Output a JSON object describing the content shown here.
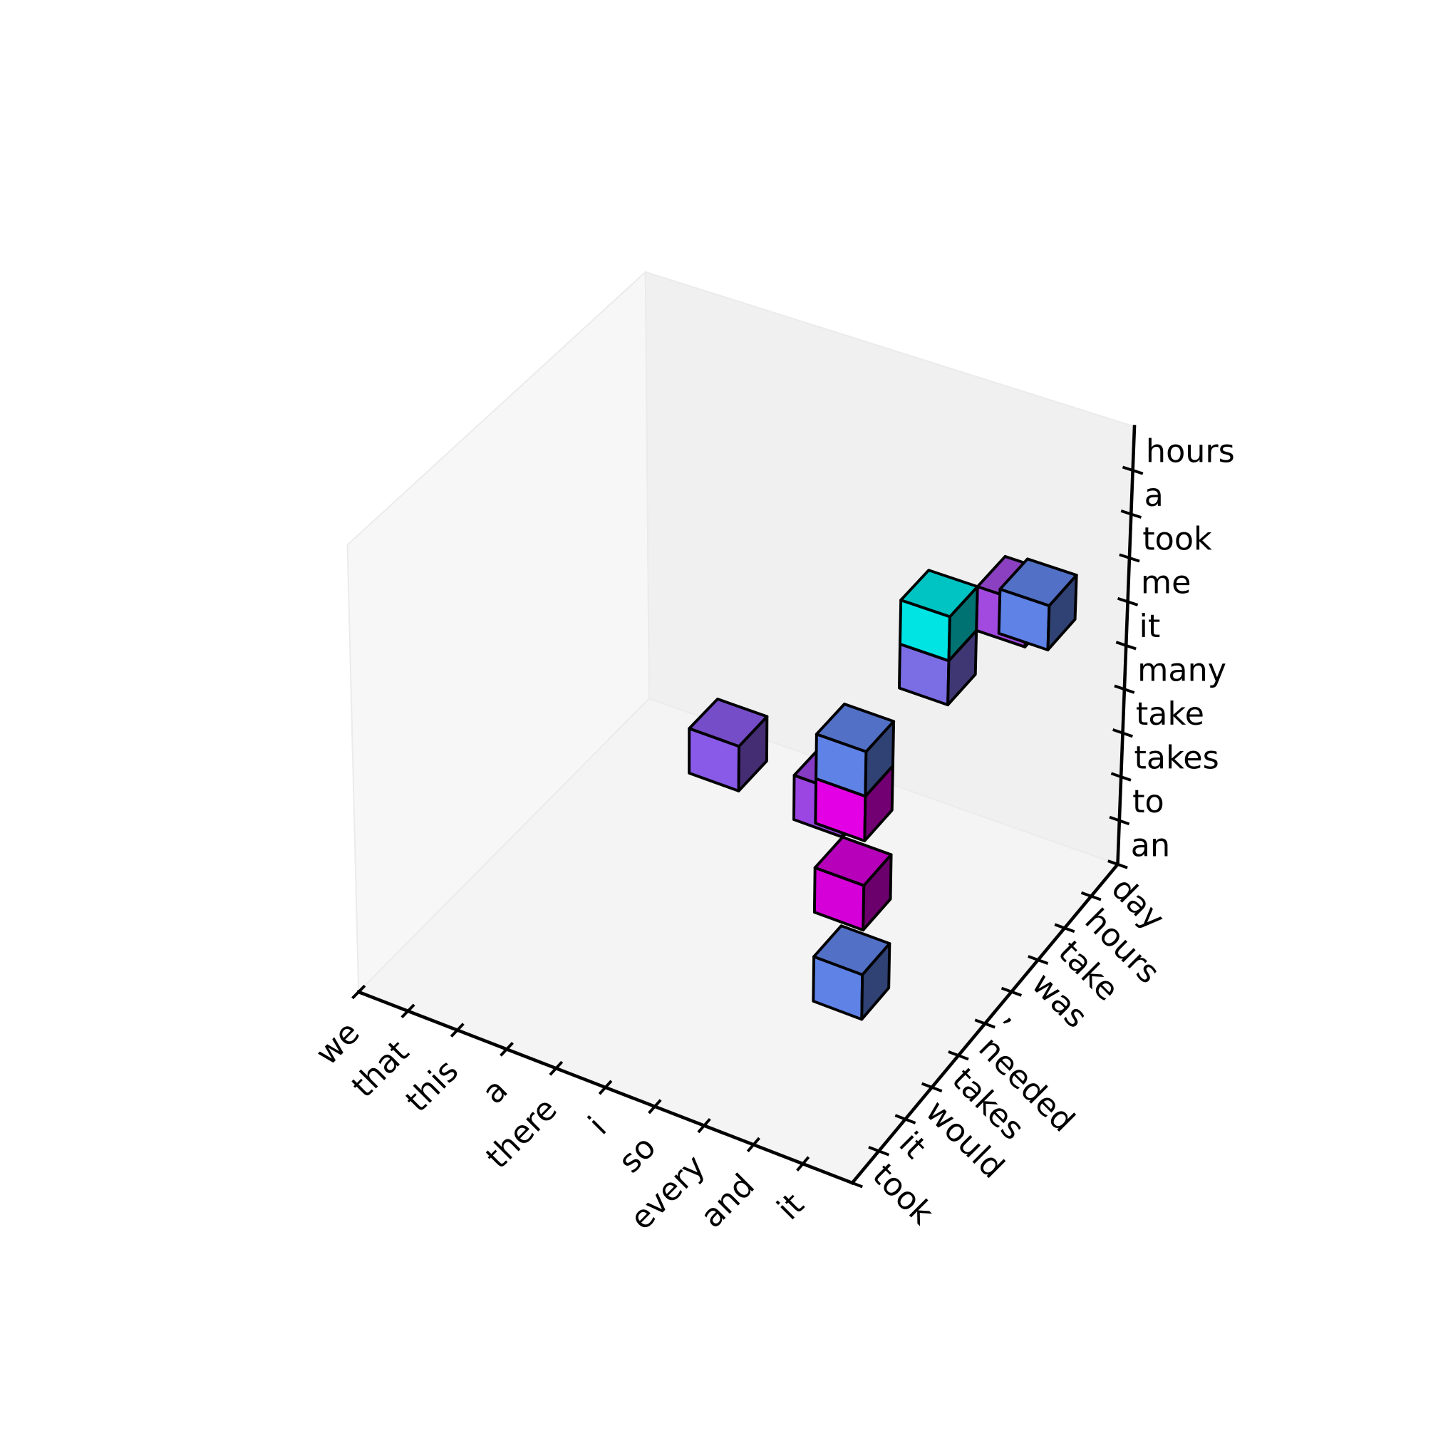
{
  "chart_data": {
    "type": "voxel",
    "x_categories": [
      "we",
      "that",
      "this",
      "a",
      "there",
      "i",
      "so",
      "every",
      "and",
      "it"
    ],
    "y_categories": [
      "took",
      "it",
      "would",
      "takes",
      "needed",
      ",",
      "was",
      "take",
      "hours",
      "day"
    ],
    "z_categories": [
      "an",
      "to",
      "takes",
      "take",
      "many",
      "it",
      "me",
      "took",
      "a",
      "hours"
    ],
    "xlim": [
      0,
      10
    ],
    "ylim": [
      0,
      10
    ],
    "zlim": [
      0,
      10
    ],
    "xticks": [
      0,
      1,
      2,
      3,
      4,
      5,
      6,
      7,
      8,
      9
    ],
    "yticks": [
      0,
      1,
      2,
      3,
      4,
      5,
      6,
      7,
      8,
      9
    ],
    "zticks": [
      0,
      1,
      2,
      3,
      4,
      5,
      6,
      7,
      8,
      9
    ],
    "voxels": [
      {
        "x": 7,
        "y": 4,
        "z": 0,
        "color": "#5f82e6"
      },
      {
        "x": 6,
        "y": 5,
        "z": 3,
        "color": "#9b45e3"
      },
      {
        "x": 7,
        "y": 4,
        "z": 2,
        "color": "#d500d8"
      },
      {
        "x": 7,
        "y": 7,
        "z": 5,
        "color": "#7b6ee5"
      },
      {
        "x": 8,
        "y": 8,
        "z": 6,
        "color": "#a24ae0"
      },
      {
        "x": 7,
        "y": 7,
        "z": 6,
        "color": "#00e4e4"
      },
      {
        "x": 5,
        "y": 3,
        "z": 5,
        "color": "#895ae8"
      },
      {
        "x": 7,
        "y": 4,
        "z": 4,
        "color": "#e400e4"
      },
      {
        "x": 7,
        "y": 4,
        "z": 5,
        "color": "#5f82e6"
      },
      {
        "x": 9,
        "y": 7,
        "z": 7,
        "color": "#5f82e6"
      }
    ]
  }
}
